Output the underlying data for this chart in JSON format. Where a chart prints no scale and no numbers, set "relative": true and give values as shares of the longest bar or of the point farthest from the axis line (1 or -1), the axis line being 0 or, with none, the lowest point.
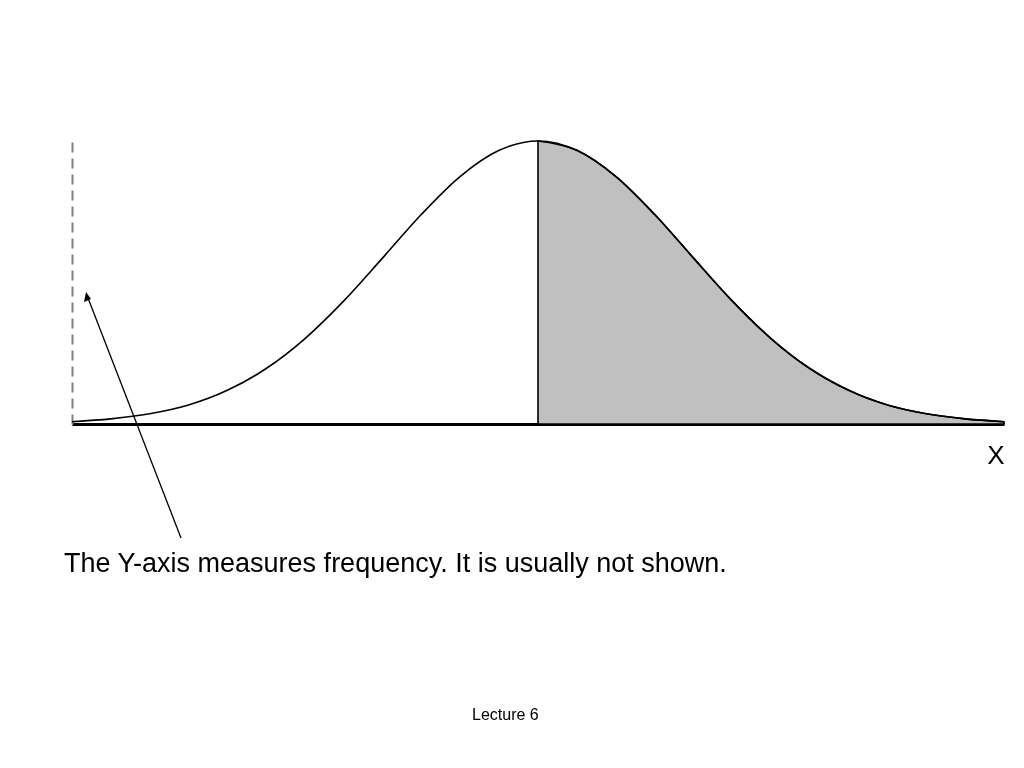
{
  "chart_data": {
    "type": "line",
    "relative": true,
    "xlabel": "X",
    "categories": [
      null,
      null,
      null,
      null,
      null,
      null,
      null,
      null,
      null,
      null,
      null,
      null,
      null,
      null,
      null,
      null,
      null,
      null,
      null,
      null,
      null,
      null,
      null,
      null,
      null
    ],
    "series": [
      {
        "type": "area",
        "color": "#c0c0c0",
        "values": [
          null,
          null,
          null,
          null,
          null,
          null,
          null,
          null,
          null,
          null,
          null,
          null,
          1,
          0.967,
          0.875,
          0.741,
          0.587,
          0.435,
          0.302,
          0.196,
          0.119,
          0.067,
          0.036,
          0.018,
          0.008
        ]
      },
      {
        "color": "#000000",
        "values": [
          0.008,
          0.018,
          0.036,
          0.067,
          0.119,
          0.196,
          0.302,
          0.435,
          0.587,
          0.741,
          0.875,
          0.967,
          1,
          0.967,
          0.875,
          0.741,
          0.587,
          0.435,
          0.302,
          0.196,
          0.119,
          0.067,
          0.036,
          0.018,
          0.008
        ]
      }
    ],
    "grid": false,
    "annotations": [
      "The Y-axis measures frequency. It is usually not shown.",
      "Lecture 6"
    ]
  }
}
